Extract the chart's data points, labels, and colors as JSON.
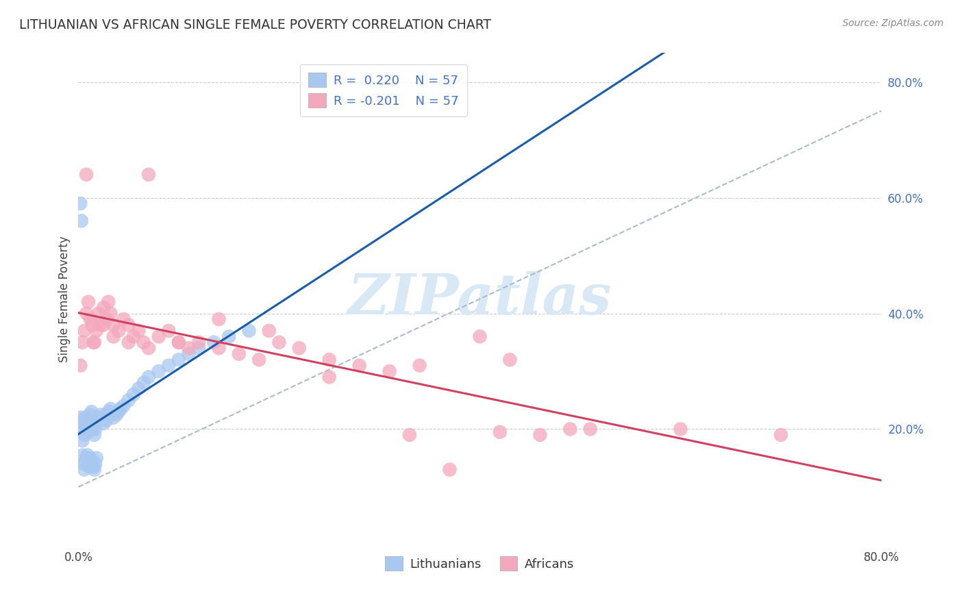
{
  "title": "LITHUANIAN VS AFRICAN SINGLE FEMALE POVERTY CORRELATION CHART",
  "source": "Source: ZipAtlas.com",
  "ylabel": "Single Female Poverty",
  "xlim": [
    0.0,
    0.8
  ],
  "ylim": [
    0.0,
    0.8
  ],
  "ytick_labels": [
    "20.0%",
    "40.0%",
    "60.0%",
    "80.0%"
  ],
  "ytick_vals": [
    0.2,
    0.4,
    0.6,
    0.8
  ],
  "xtick_vals": [
    0.0,
    0.8
  ],
  "xtick_labels": [
    "0.0%",
    "80.0%"
  ],
  "lithuanian_color": "#A8C8F0",
  "african_color": "#F4A8BC",
  "trendline_lith_color": "#1A5CA8",
  "trendline_afr_color": "#D04060",
  "diag_color": "#AABBCC",
  "watermark_color": "#D8E8F5",
  "background_color": "#FFFFFF",
  "gridline_color": "#CCCCCC",
  "lith_x": [
    0.002,
    0.003,
    0.004,
    0.005,
    0.006,
    0.007,
    0.008,
    0.009,
    0.01,
    0.012,
    0.013,
    0.014,
    0.015,
    0.016,
    0.017,
    0.018,
    0.02,
    0.022,
    0.025,
    0.028,
    0.03,
    0.032,
    0.035,
    0.038,
    0.04,
    0.042,
    0.045,
    0.05,
    0.055,
    0.06,
    0.065,
    0.07,
    0.08,
    0.09,
    0.1,
    0.11,
    0.12,
    0.135,
    0.15,
    0.17,
    0.002,
    0.003,
    0.004,
    0.005,
    0.006,
    0.007,
    0.008,
    0.009,
    0.01,
    0.011,
    0.012,
    0.013,
    0.014,
    0.015,
    0.016,
    0.017,
    0.018
  ],
  "lith_y": [
    0.22,
    0.2,
    0.18,
    0.21,
    0.19,
    0.22,
    0.2,
    0.215,
    0.195,
    0.225,
    0.23,
    0.2,
    0.21,
    0.19,
    0.2,
    0.215,
    0.22,
    0.225,
    0.21,
    0.215,
    0.23,
    0.235,
    0.22,
    0.225,
    0.23,
    0.235,
    0.24,
    0.25,
    0.26,
    0.27,
    0.28,
    0.29,
    0.3,
    0.31,
    0.32,
    0.33,
    0.34,
    0.35,
    0.36,
    0.37,
    0.59,
    0.56,
    0.155,
    0.14,
    0.13,
    0.145,
    0.15,
    0.155,
    0.14,
    0.135,
    0.15,
    0.145,
    0.14,
    0.135,
    0.13,
    0.14,
    0.15
  ],
  "afr_x": [
    0.002,
    0.004,
    0.006,
    0.008,
    0.01,
    0.012,
    0.014,
    0.016,
    0.018,
    0.02,
    0.022,
    0.025,
    0.028,
    0.03,
    0.032,
    0.035,
    0.04,
    0.045,
    0.05,
    0.055,
    0.06,
    0.065,
    0.07,
    0.08,
    0.09,
    0.1,
    0.11,
    0.12,
    0.14,
    0.16,
    0.18,
    0.2,
    0.22,
    0.25,
    0.28,
    0.31,
    0.34,
    0.37,
    0.4,
    0.43,
    0.46,
    0.49,
    0.008,
    0.015,
    0.025,
    0.035,
    0.05,
    0.07,
    0.1,
    0.14,
    0.19,
    0.25,
    0.33,
    0.42,
    0.51,
    0.6,
    0.7
  ],
  "afr_y": [
    0.31,
    0.35,
    0.37,
    0.4,
    0.42,
    0.39,
    0.38,
    0.35,
    0.37,
    0.4,
    0.38,
    0.41,
    0.39,
    0.42,
    0.4,
    0.38,
    0.37,
    0.39,
    0.38,
    0.36,
    0.37,
    0.35,
    0.64,
    0.36,
    0.37,
    0.35,
    0.34,
    0.35,
    0.34,
    0.33,
    0.32,
    0.35,
    0.34,
    0.32,
    0.31,
    0.3,
    0.31,
    0.13,
    0.36,
    0.32,
    0.19,
    0.2,
    0.64,
    0.35,
    0.38,
    0.36,
    0.35,
    0.34,
    0.35,
    0.39,
    0.37,
    0.29,
    0.19,
    0.195,
    0.2,
    0.2,
    0.19
  ],
  "diag_line_x": [
    0.0,
    0.8
  ],
  "diag_line_y": [
    0.0,
    0.8
  ]
}
